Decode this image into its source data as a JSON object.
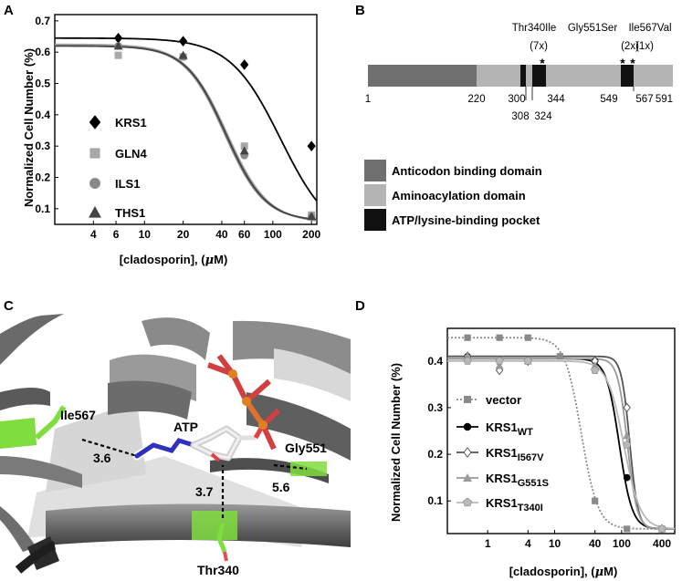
{
  "panels": {
    "A": {
      "label": "A",
      "ylabel": "Normalized Cell Number (%)",
      "xlabel_prefix": "[cladosporin], (",
      "xlabel_mu": "μ",
      "xlabel_suffix": "M)"
    },
    "B": {
      "label": "B",
      "mutations": [
        {
          "name": "Thr340Ile",
          "count": "(7x)"
        },
        {
          "name": "Gly551Ser",
          "count": "(2x)"
        },
        {
          "name": "Ile567Val",
          "count": "(1x)"
        }
      ],
      "asterisk": "*",
      "positions_upper": [
        "1",
        "220",
        "300",
        "344",
        "549",
        "567",
        "591"
      ],
      "positions_lower": [
        "308",
        "324"
      ],
      "legend": [
        {
          "label": "Anticodon binding domain",
          "color": "#707070"
        },
        {
          "label": "Aminoacylation domain",
          "color": "#b4b4b4"
        },
        {
          "label": "ATP/lysine-binding pocket",
          "color": "#111111"
        }
      ]
    },
    "C": {
      "label": "C",
      "residue_labels": {
        "ile567": "Ile567",
        "atp": "ATP",
        "gly551": "Gly551",
        "thr340": "Thr340"
      },
      "distances": {
        "d1": "3.6",
        "d2": "3.7",
        "d3": "5.6"
      }
    },
    "D": {
      "label": "D",
      "ylabel": "Normalized Cell Number (%)",
      "xlabel_prefix": "[cladosporin], (",
      "xlabel_mu": "μ",
      "xlabel_suffix": "M)",
      "legend": [
        {
          "base": "vector",
          "sub": ""
        },
        {
          "base": "KRS1",
          "sub": "WT"
        },
        {
          "base": "KRS1",
          "sub": "I567V"
        },
        {
          "base": "KRS1",
          "sub": "G551S"
        },
        {
          "base": "KRS1",
          "sub": "T340I"
        }
      ]
    }
  },
  "chart_data": [
    {
      "panel": "A",
      "type": "scatter",
      "x_scale": "log",
      "xlim": [
        2,
        220
      ],
      "ylim": [
        0.05,
        0.72
      ],
      "xticks": [
        4,
        6,
        10,
        20,
        40,
        60,
        100,
        200
      ],
      "yticks": [
        0.1,
        0.2,
        0.3,
        0.4,
        0.5,
        0.6,
        0.7
      ],
      "legend_position": "left",
      "series": [
        {
          "name": "KRS1",
          "color": "#000000",
          "marker": "diamond",
          "x": [
            6.25,
            20,
            60,
            200
          ],
          "y": [
            0.645,
            0.635,
            0.56,
            0.3
          ],
          "fit": {
            "top": 0.645,
            "bottom": 0.0,
            "ec50": 115,
            "hill": 2.2
          }
        },
        {
          "name": "GLN4",
          "color": "#a8a8a8",
          "marker": "square",
          "x": [
            6.25,
            20,
            60,
            200
          ],
          "y": [
            0.59,
            0.585,
            0.3,
            0.08
          ],
          "fit": {
            "top": 0.625,
            "bottom": 0.055,
            "ec50": 44,
            "hill": 2.7
          }
        },
        {
          "name": "ILS1",
          "color": "#8a8a8a",
          "marker": "circle",
          "x": [
            6.25,
            20,
            60,
            200
          ],
          "y": [
            0.62,
            0.585,
            0.27,
            0.075
          ],
          "fit": {
            "top": 0.62,
            "bottom": 0.06,
            "ec50": 42,
            "hill": 2.8
          }
        },
        {
          "name": "THS1",
          "color": "#444444",
          "marker": "triangle",
          "x": [
            6.25,
            20,
            60,
            200
          ],
          "y": [
            0.62,
            0.59,
            0.285,
            0.075
          ],
          "fit": {
            "top": 0.62,
            "bottom": 0.06,
            "ec50": 43,
            "hill": 2.8
          }
        }
      ]
    },
    {
      "panel": "D",
      "type": "scatter",
      "x_scale": "log",
      "xlim": [
        0.25,
        620
      ],
      "ylim": [
        0.03,
        0.47
      ],
      "xticks": [
        1,
        4,
        10,
        40,
        100,
        400
      ],
      "yticks": [
        0.1,
        0.2,
        0.3,
        0.4
      ],
      "legend_position": "bottom-left",
      "series": [
        {
          "name": "vector",
          "color": "#8a8a8a",
          "marker": "square",
          "dotted": true,
          "x": [
            0.5,
            1.5,
            4,
            12,
            40,
            120,
            400
          ],
          "y": [
            0.45,
            0.45,
            0.45,
            0.41,
            0.1,
            0.04,
            0.04
          ],
          "fit": {
            "top": 0.45,
            "bottom": 0.04,
            "ec50": 25,
            "hill": 3.5
          }
        },
        {
          "name": "KRS1WT",
          "color": "#000000",
          "marker": "circle",
          "x": [
            0.5,
            1.5,
            4,
            40,
            120,
            400
          ],
          "y": [
            0.41,
            0.4,
            0.4,
            0.4,
            0.15,
            0.04
          ],
          "fit": {
            "top": 0.405,
            "bottom": 0.04,
            "ec50": 92,
            "hill": 4.5
          }
        },
        {
          "name": "KRS1I567V",
          "color": "#555555",
          "marker": "diamond-open",
          "x": [
            0.5,
            1.5,
            4,
            40,
            120,
            400
          ],
          "y": [
            0.41,
            0.38,
            0.4,
            0.4,
            0.3,
            0.04
          ],
          "fit": {
            "top": 0.41,
            "bottom": 0.04,
            "ec50": 132,
            "hill": 7
          }
        },
        {
          "name": "KRS1G551S",
          "color": "#9a9a9a",
          "marker": "triangle",
          "x": [
            0.5,
            1.5,
            4,
            40,
            120,
            400
          ],
          "y": [
            0.41,
            0.39,
            0.4,
            0.39,
            0.24,
            0.04
          ],
          "fit": {
            "top": 0.405,
            "bottom": 0.04,
            "ec50": 122,
            "hill": 6
          }
        },
        {
          "name": "KRS1T340I",
          "color": "#b8b8b8",
          "marker": "pentagon",
          "x": [
            0.5,
            1.5,
            4,
            40,
            120,
            400
          ],
          "y": [
            0.4,
            0.4,
            0.4,
            0.38,
            0.22,
            0.04
          ],
          "fit": {
            "top": 0.4,
            "bottom": 0.04,
            "ec50": 108,
            "hill": 3.5
          }
        }
      ]
    }
  ]
}
